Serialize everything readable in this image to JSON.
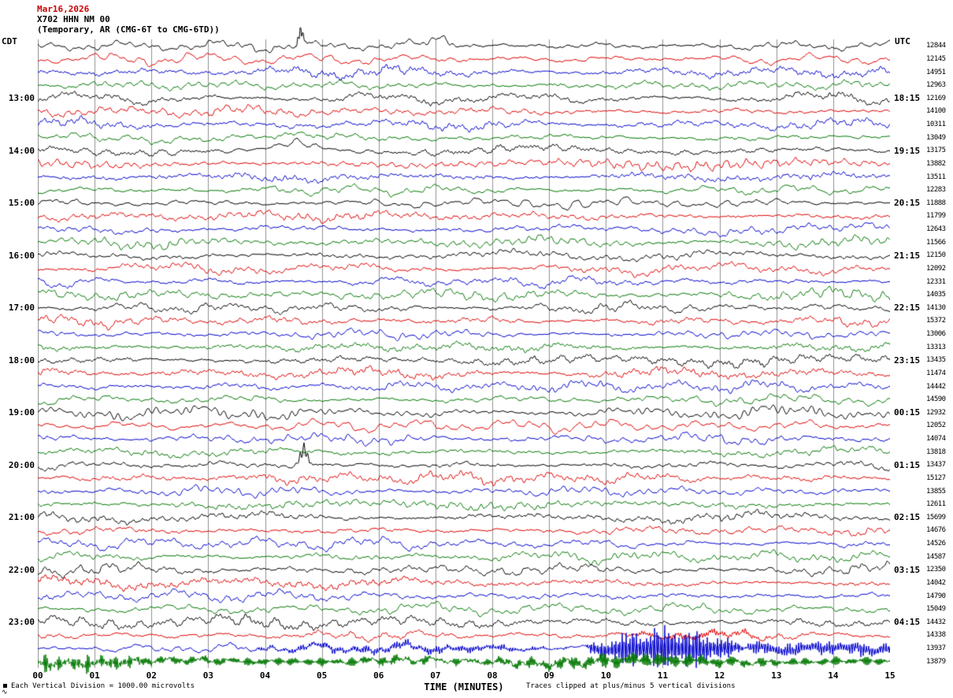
{
  "header": {
    "date": "Mar16,2026",
    "station": "X702 HHN NM 00",
    "description": "(Temporary, AR (CMG-6T to CMG-6TD))"
  },
  "axes": {
    "left_timezone": "CDT",
    "right_timezone": "UTC",
    "x_axis_label": "TIME (MINUTES)"
  },
  "footer": {
    "left_note": "Each Vertical Division = 1000.00 microvolts",
    "right_note": "Traces clipped at plus/minus 5 vertical divisions",
    "corner_mark": "∿"
  },
  "colors": {
    "background": "#ffffff",
    "date_text": "#cc0000",
    "text": "#000000",
    "grid": "#909090",
    "trace_black": "#000000",
    "trace_red": "#dd0000",
    "trace_blue": "#0000cc",
    "trace_green": "#007700"
  },
  "chart_data": {
    "type": "line",
    "subtype": "helicorder-seismogram",
    "title": "X702 HHN NM 00",
    "xlabel": "TIME (MINUTES)",
    "x_range": [
      0,
      15
    ],
    "x_ticks": [
      "00",
      "01",
      "02",
      "03",
      "04",
      "05",
      "06",
      "07",
      "08",
      "09",
      "10",
      "11",
      "12",
      "13",
      "14",
      "15"
    ],
    "rows": 48,
    "row_minutes": 15,
    "grid": true,
    "trace_color_cycle": [
      "#000000",
      "#dd0000",
      "#0000cc",
      "#007700"
    ],
    "left_hour_labels": [
      "13:00",
      "14:00",
      "15:00",
      "16:00",
      "17:00",
      "18:00",
      "19:00",
      "20:00",
      "21:00",
      "22:00",
      "23:00"
    ],
    "right_utc_labels": [
      "18:15",
      "19:15",
      "20:15",
      "21:15",
      "22:15",
      "23:15",
      "00:15",
      "01:15",
      "02:15",
      "03:15",
      "04:15"
    ],
    "right_amplitude_values": [
      "12844",
      "12145",
      "14951",
      "12963",
      "12169",
      "14100",
      "10311",
      "13049",
      "13175",
      "13882",
      "13511",
      "12283",
      "11888",
      "11799",
      "12643",
      "11566",
      "12150",
      "12092",
      "12331",
      "14035",
      "14130",
      "15372",
      "13006",
      "13313",
      "13435",
      "11474",
      "14442",
      "14590",
      "12932",
      "12052",
      "14074",
      "13818",
      "13437",
      "15127",
      "13855",
      "12611",
      "15699",
      "14676",
      "14526",
      "14587",
      "12350",
      "14042",
      "14790",
      "15049",
      "14432",
      "14338",
      "13937",
      "13879"
    ],
    "events": [
      {
        "row": 0,
        "type": "spike",
        "t": 4.62,
        "amp": 21,
        "w": 0.06
      },
      {
        "row": 0,
        "type": "spike",
        "t": 7.12,
        "amp": 13,
        "w": 0.28
      },
      {
        "row": 8,
        "type": "spike",
        "t": 4.55,
        "amp": 12,
        "w": 0.45
      },
      {
        "row": 32,
        "type": "spike",
        "t": 4.68,
        "amp": 25,
        "w": 0.09
      },
      {
        "row": 45,
        "type": "burst",
        "t0": 9.9,
        "t1": 13.2,
        "amp": 3.5,
        "f": 22
      },
      {
        "row": 46,
        "type": "burst",
        "t0": 3.2,
        "t1": 9.6,
        "amp": 5,
        "f": 26
      },
      {
        "row": 46,
        "type": "burst",
        "t0": 9.6,
        "t1": 12.5,
        "amp": 30,
        "f": 28
      },
      {
        "row": 46,
        "type": "burst",
        "t0": 12.5,
        "t1": 15.0,
        "amp": 9,
        "f": 26,
        "flat": true
      },
      {
        "row": 47,
        "type": "burst",
        "t0": 0.0,
        "t1": 15.0,
        "amp": 5.5,
        "f": 38,
        "flat": true
      },
      {
        "row": 47,
        "type": "burst",
        "t0": 0.0,
        "t1": 1.8,
        "amp": 8,
        "f": 30,
        "flat": true
      },
      {
        "row": 47,
        "type": "burst",
        "t0": 6.3,
        "t1": 13.8,
        "amp": 5,
        "f": 34
      }
    ],
    "clip_divisions": 5,
    "noise_seed": 20260316
  }
}
